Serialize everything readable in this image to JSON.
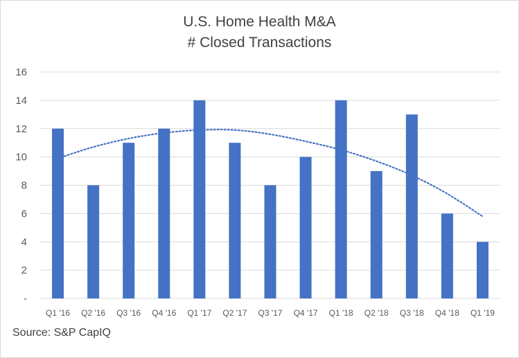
{
  "chart_data": {
    "type": "bar",
    "title": "U.S. Home Health M&A",
    "subtitle": "# Closed Transactions",
    "categories": [
      "Q1 '16",
      "Q2 '16",
      "Q3 '16",
      "Q4 '16",
      "Q1 '17",
      "Q2 '17",
      "Q3 '17",
      "Q4 '17",
      "Q1 '18",
      "Q2 '18",
      "Q3 '18",
      "Q4 '18",
      "Q1 '19"
    ],
    "values": [
      12,
      8,
      11,
      12,
      14,
      11,
      8,
      10,
      14,
      9,
      13,
      6,
      4
    ],
    "trendline": {
      "type": "polynomial",
      "style": "dotted",
      "values": [
        9.9,
        10.7,
        11.3,
        11.7,
        11.9,
        11.9,
        11.6,
        11.1,
        10.5,
        9.7,
        8.7,
        7.4,
        5.8
      ]
    },
    "ylim": [
      0,
      16
    ],
    "yticks": [
      "-",
      "2",
      "4",
      "6",
      "8",
      "10",
      "12",
      "14",
      "16"
    ],
    "grid": true,
    "bar_color": "#4472c4",
    "trend_color": "#4472c4"
  },
  "source": "Source: S&P CapIQ"
}
